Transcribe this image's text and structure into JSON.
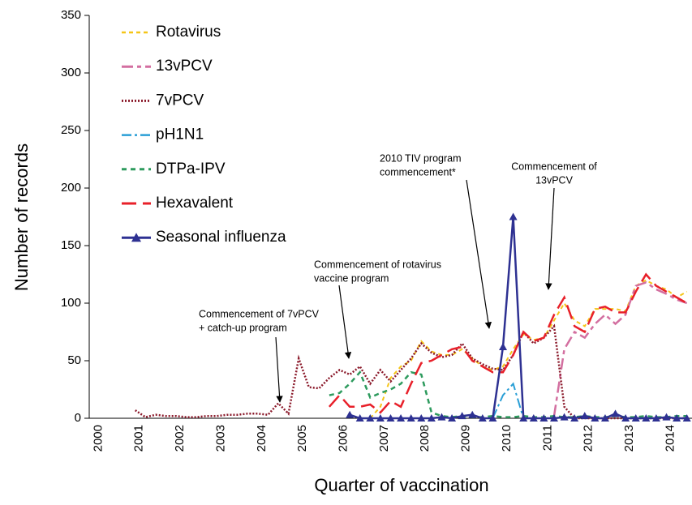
{
  "chart_data": {
    "type": "line",
    "xlabel": "Quarter of vaccination",
    "ylabel": "Number of records",
    "categories": [
      "2000",
      null,
      null,
      null,
      "2001",
      null,
      null,
      null,
      "2002",
      null,
      null,
      null,
      "2003",
      null,
      null,
      null,
      "2004",
      null,
      null,
      null,
      "2005",
      null,
      null,
      null,
      "2006",
      null,
      null,
      null,
      "2007",
      null,
      null,
      null,
      "2008",
      null,
      null,
      null,
      "2009",
      null,
      null,
      null,
      "2010",
      null,
      null,
      null,
      "2011",
      null,
      null,
      null,
      "2012",
      null,
      null,
      null,
      "2013",
      null,
      null,
      null,
      "2014",
      null,
      null
    ],
    "ylim": [
      0,
      350
    ],
    "yticks": [
      0,
      50,
      100,
      150,
      200,
      250,
      300,
      350
    ],
    "series": [
      {
        "name": "Rotavirus",
        "color": "#f5c518",
        "values": [
          null,
          null,
          null,
          null,
          null,
          null,
          null,
          null,
          null,
          null,
          null,
          null,
          null,
          null,
          null,
          null,
          null,
          null,
          null,
          null,
          null,
          null,
          null,
          null,
          null,
          null,
          null,
          0,
          10,
          35,
          45,
          50,
          67,
          58,
          55,
          55,
          60,
          52,
          45,
          42,
          45,
          60,
          73,
          68,
          70,
          85,
          100,
          85,
          80,
          95,
          95,
          95,
          93,
          115,
          120,
          115,
          112,
          105,
          110
        ]
      },
      {
        "name": "13vPCV",
        "color": "#d36fa0",
        "values": [
          null,
          null,
          null,
          null,
          null,
          null,
          null,
          null,
          null,
          null,
          null,
          null,
          null,
          null,
          null,
          null,
          null,
          null,
          null,
          null,
          null,
          null,
          null,
          null,
          null,
          null,
          null,
          null,
          null,
          null,
          null,
          null,
          null,
          null,
          null,
          null,
          null,
          null,
          null,
          null,
          null,
          null,
          null,
          null,
          null,
          2,
          60,
          75,
          70,
          82,
          90,
          82,
          90,
          115,
          118,
          112,
          108,
          103,
          100
        ]
      },
      {
        "name": "7vPCV",
        "color": "#8b1a2b",
        "values": [
          null,
          null,
          null,
          null,
          7,
          1,
          3,
          2,
          2,
          1,
          1,
          2,
          2,
          3,
          3,
          4,
          4,
          3,
          13,
          4,
          52,
          27,
          26,
          35,
          42,
          38,
          45,
          30,
          42,
          32,
          42,
          52,
          65,
          57,
          53,
          55,
          65,
          52,
          47,
          43,
          42,
          55,
          75,
          65,
          70,
          80,
          10,
          0,
          0,
          0,
          0,
          0,
          0,
          0,
          0,
          0,
          0,
          0,
          0
        ]
      },
      {
        "name": "pH1N1",
        "color": "#2a9fd6",
        "values": [
          null,
          null,
          null,
          null,
          null,
          null,
          null,
          null,
          null,
          null,
          null,
          null,
          null,
          null,
          null,
          null,
          null,
          null,
          null,
          null,
          null,
          null,
          null,
          null,
          null,
          null,
          null,
          null,
          null,
          null,
          null,
          null,
          null,
          null,
          null,
          null,
          null,
          null,
          null,
          0,
          20,
          30,
          0,
          null,
          null,
          null,
          null,
          null,
          null,
          null,
          null,
          null,
          null,
          null,
          null,
          null,
          null,
          null,
          null
        ]
      },
      {
        "name": "DTPa-IPV",
        "color": "#2e9b5e",
        "values": [
          null,
          null,
          null,
          null,
          null,
          null,
          null,
          null,
          null,
          null,
          null,
          null,
          null,
          null,
          null,
          null,
          null,
          null,
          null,
          null,
          null,
          null,
          null,
          20,
          22,
          30,
          40,
          18,
          22,
          25,
          30,
          40,
          38,
          5,
          2,
          1,
          2,
          1,
          1,
          2,
          1,
          1,
          2,
          1,
          1,
          2,
          1,
          1,
          2,
          1,
          1,
          2,
          1,
          1,
          2,
          1,
          1,
          2,
          2
        ]
      },
      {
        "name": "Hexavalent",
        "color": "#e8202a",
        "values": [
          null,
          null,
          null,
          null,
          null,
          null,
          null,
          null,
          null,
          null,
          null,
          null,
          null,
          null,
          null,
          null,
          null,
          null,
          null,
          null,
          null,
          null,
          null,
          10,
          20,
          10,
          10,
          12,
          5,
          15,
          10,
          30,
          48,
          50,
          55,
          60,
          62,
          50,
          45,
          40,
          40,
          55,
          75,
          67,
          70,
          90,
          105,
          80,
          75,
          95,
          97,
          92,
          92,
          110,
          125,
          115,
          110,
          105,
          100
        ]
      },
      {
        "name": "Seasonal influenza",
        "color": "#2e3192",
        "values": [
          null,
          null,
          null,
          null,
          null,
          null,
          null,
          null,
          null,
          null,
          null,
          null,
          null,
          null,
          null,
          null,
          null,
          null,
          null,
          null,
          null,
          null,
          null,
          null,
          null,
          3,
          0,
          0,
          0,
          0,
          0,
          0,
          0,
          0,
          1,
          0,
          2,
          3,
          0,
          0,
          62,
          175,
          0,
          0,
          0,
          0,
          1,
          0,
          2,
          0,
          0,
          4,
          0,
          0,
          0,
          0,
          1,
          0,
          0
        ]
      }
    ],
    "annotations": [
      [
        "Commencement of 7vPCV",
        "+ catch-up program"
      ],
      [
        "Commencement of rotavirus",
        "vaccine program"
      ],
      [
        "2010 TIV program",
        "commencement*"
      ],
      [
        "Commencement of",
        "13vPCV"
      ]
    ]
  }
}
